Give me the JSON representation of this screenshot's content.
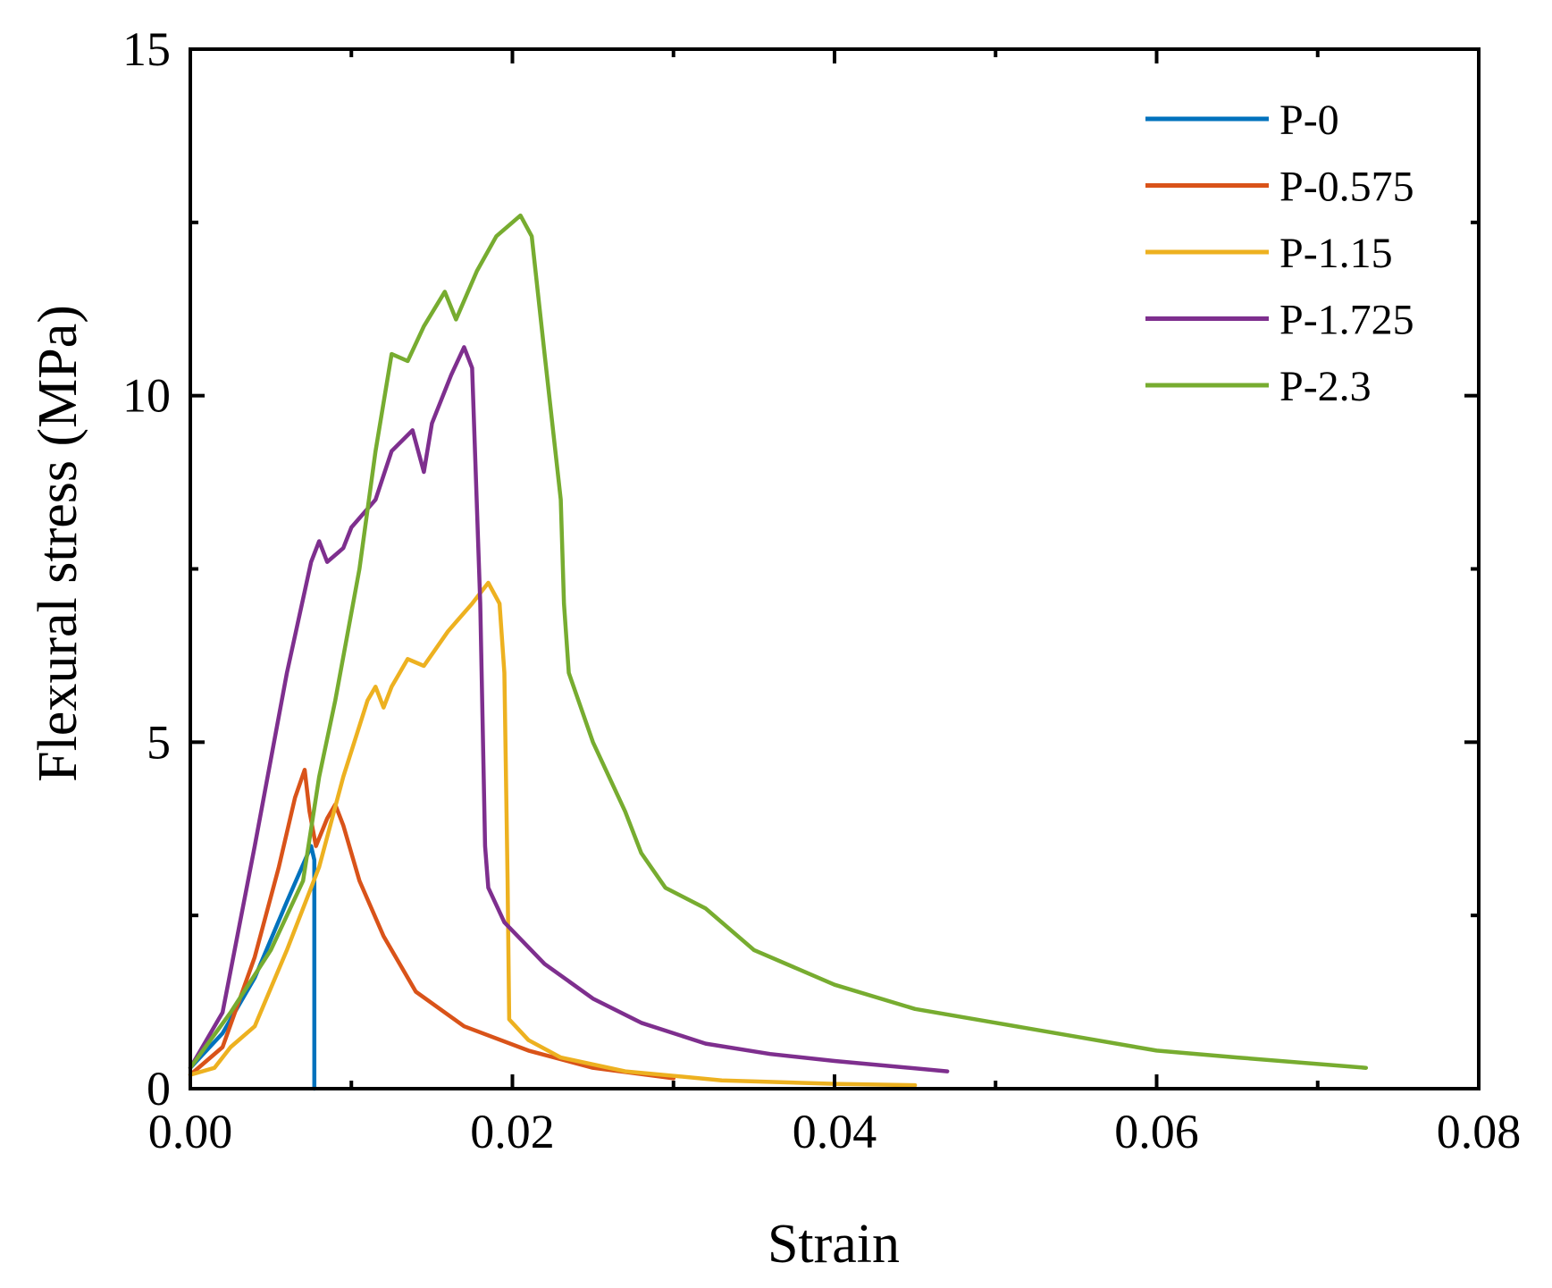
{
  "chart_data": {
    "type": "line",
    "title": "",
    "xlabel": "Strain",
    "ylabel": "Flexural stress (MPa)",
    "xlim": [
      0,
      0.08
    ],
    "ylim": [
      0,
      15
    ],
    "x_ticks": [
      0,
      0.02,
      0.04,
      0.06,
      0.08
    ],
    "x_tick_labels": [
      "0.00",
      "0.02",
      "0.04",
      "0.06",
      "0.08"
    ],
    "y_ticks": [
      0,
      5,
      10,
      15
    ],
    "y_tick_labels": [
      "0",
      "5",
      "10",
      "15"
    ],
    "legend_position": "top-right",
    "grid": false,
    "series": [
      {
        "name": "P-0",
        "color": "#0072BD",
        "points": [
          [
            0,
            0.3
          ],
          [
            0.002,
            0.8
          ],
          [
            0.004,
            1.6
          ],
          [
            0.006,
            2.7
          ],
          [
            0.0075,
            3.5
          ],
          [
            0.0077,
            3.3
          ],
          [
            0.0077,
            0
          ]
        ]
      },
      {
        "name": "P-0.575",
        "color": "#D95319",
        "points": [
          [
            0,
            0.2
          ],
          [
            0.002,
            0.6
          ],
          [
            0.004,
            1.9
          ],
          [
            0.0055,
            3.2
          ],
          [
            0.0065,
            4.2
          ],
          [
            0.0071,
            4.6
          ],
          [
            0.0074,
            4.0
          ],
          [
            0.0078,
            3.5
          ],
          [
            0.0085,
            3.9
          ],
          [
            0.009,
            4.1
          ],
          [
            0.0095,
            3.8
          ],
          [
            0.0105,
            3.0
          ],
          [
            0.012,
            2.2
          ],
          [
            0.014,
            1.4
          ],
          [
            0.017,
            0.9
          ],
          [
            0.021,
            0.55
          ],
          [
            0.025,
            0.3
          ],
          [
            0.03,
            0.15
          ]
        ]
      },
      {
        "name": "P-1.15",
        "color": "#EDB120",
        "points": [
          [
            0,
            0.2
          ],
          [
            0.0015,
            0.3
          ],
          [
            0.0025,
            0.6
          ],
          [
            0.004,
            0.9
          ],
          [
            0.006,
            2.0
          ],
          [
            0.008,
            3.2
          ],
          [
            0.0095,
            4.5
          ],
          [
            0.011,
            5.6
          ],
          [
            0.0115,
            5.8
          ],
          [
            0.012,
            5.5
          ],
          [
            0.0125,
            5.8
          ],
          [
            0.0135,
            6.2
          ],
          [
            0.0145,
            6.1
          ],
          [
            0.016,
            6.6
          ],
          [
            0.0175,
            7.0
          ],
          [
            0.0185,
            7.3
          ],
          [
            0.0192,
            7.0
          ],
          [
            0.0195,
            6.0
          ],
          [
            0.0197,
            3.0
          ],
          [
            0.0198,
            1.0
          ],
          [
            0.021,
            0.7
          ],
          [
            0.023,
            0.45
          ],
          [
            0.027,
            0.25
          ],
          [
            0.033,
            0.12
          ],
          [
            0.04,
            0.07
          ],
          [
            0.045,
            0.05
          ]
        ]
      },
      {
        "name": "P-1.725",
        "color": "#7E2F8E",
        "points": [
          [
            0,
            0.3
          ],
          [
            0.002,
            1.1
          ],
          [
            0.004,
            3.5
          ],
          [
            0.006,
            6.0
          ],
          [
            0.0075,
            7.6
          ],
          [
            0.008,
            7.9
          ],
          [
            0.0085,
            7.6
          ],
          [
            0.0095,
            7.8
          ],
          [
            0.01,
            8.1
          ],
          [
            0.0115,
            8.5
          ],
          [
            0.0125,
            9.2
          ],
          [
            0.0138,
            9.5
          ],
          [
            0.0145,
            8.9
          ],
          [
            0.015,
            9.6
          ],
          [
            0.0162,
            10.3
          ],
          [
            0.017,
            10.7
          ],
          [
            0.0175,
            10.4
          ],
          [
            0.018,
            7.0
          ],
          [
            0.0183,
            3.5
          ],
          [
            0.0185,
            2.9
          ],
          [
            0.0195,
            2.4
          ],
          [
            0.022,
            1.8
          ],
          [
            0.025,
            1.3
          ],
          [
            0.028,
            0.95
          ],
          [
            0.032,
            0.65
          ],
          [
            0.036,
            0.5
          ],
          [
            0.04,
            0.4
          ],
          [
            0.047,
            0.25
          ]
        ]
      },
      {
        "name": "P-2.3",
        "color": "#77AC30",
        "points": [
          [
            0,
            0.3
          ],
          [
            0.0025,
            1.1
          ],
          [
            0.005,
            2.0
          ],
          [
            0.007,
            3.0
          ],
          [
            0.008,
            4.5
          ],
          [
            0.009,
            5.6
          ],
          [
            0.0105,
            7.5
          ],
          [
            0.0115,
            9.2
          ],
          [
            0.0125,
            10.6
          ],
          [
            0.0135,
            10.5
          ],
          [
            0.0145,
            11.0
          ],
          [
            0.0158,
            11.5
          ],
          [
            0.0165,
            11.1
          ],
          [
            0.0178,
            11.8
          ],
          [
            0.019,
            12.3
          ],
          [
            0.0195,
            12.4
          ],
          [
            0.0205,
            12.6
          ],
          [
            0.0212,
            12.3
          ],
          [
            0.022,
            10.6
          ],
          [
            0.023,
            8.5
          ],
          [
            0.0232,
            7.0
          ],
          [
            0.0235,
            6.0
          ],
          [
            0.025,
            5.0
          ],
          [
            0.027,
            4.0
          ],
          [
            0.028,
            3.4
          ],
          [
            0.0295,
            2.9
          ],
          [
            0.032,
            2.6
          ],
          [
            0.035,
            2.0
          ],
          [
            0.04,
            1.5
          ],
          [
            0.045,
            1.15
          ],
          [
            0.05,
            0.95
          ],
          [
            0.055,
            0.75
          ],
          [
            0.06,
            0.55
          ],
          [
            0.065,
            0.45
          ],
          [
            0.073,
            0.3
          ]
        ]
      }
    ]
  }
}
